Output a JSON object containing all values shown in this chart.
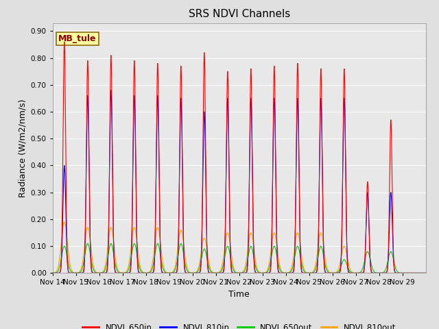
{
  "title": "SRS NDVI Channels",
  "ylabel": "Radiance (W/m2/nm/s)",
  "xlabel": "Time",
  "ylim": [
    0.0,
    0.93
  ],
  "yticks": [
    0.0,
    0.1,
    0.2,
    0.3,
    0.4,
    0.5,
    0.6,
    0.7,
    0.8,
    0.9
  ],
  "annotation_text": "MB_tule",
  "annotation_color": "#8B0000",
  "annotation_bg": "#FFFFA0",
  "annotation_border": "#8B6914",
  "series": {
    "NDVI_650in": {
      "color": "#FF0000",
      "zorder": 4
    },
    "NDVI_810in": {
      "color": "#0000FF",
      "zorder": 3
    },
    "NDVI_650out": {
      "color": "#00CC00",
      "zorder": 2
    },
    "NDVI_810out": {
      "color": "#FFA500",
      "zorder": 1
    }
  },
  "day_peaks_650in": [
    0.86,
    0.79,
    0.81,
    0.79,
    0.78,
    0.77,
    0.82,
    0.75,
    0.76,
    0.77,
    0.78,
    0.76,
    0.76,
    0.34,
    0.57,
    0.0
  ],
  "day_peaks_810in": [
    0.4,
    0.66,
    0.68,
    0.66,
    0.66,
    0.65,
    0.6,
    0.65,
    0.65,
    0.65,
    0.65,
    0.65,
    0.65,
    0.3,
    0.3,
    0.0
  ],
  "day_peaks_650out": [
    0.1,
    0.11,
    0.11,
    0.11,
    0.11,
    0.11,
    0.09,
    0.1,
    0.1,
    0.1,
    0.1,
    0.1,
    0.05,
    0.08,
    0.08,
    0.0
  ],
  "day_peaks_810out": [
    0.19,
    0.17,
    0.17,
    0.17,
    0.17,
    0.16,
    0.13,
    0.15,
    0.15,
    0.15,
    0.15,
    0.15,
    0.1,
    0.0,
    0.0,
    0.0
  ],
  "xticklabels": [
    "Nov 14",
    "Nov 15",
    "Nov 16",
    "Nov 17",
    "Nov 18",
    "Nov 19",
    "Nov 20",
    "Nov 21",
    "Nov 22",
    "Nov 23",
    "Nov 24",
    "Nov 25",
    "Nov 26",
    "Nov 27",
    "Nov 28",
    "Nov 29"
  ],
  "background_color": "#E8E8E8",
  "grid_color": "#FFFFFF",
  "title_fontsize": 11,
  "axis_fontsize": 9,
  "tick_fontsize": 7.5,
  "legend_fontsize": 8.5
}
